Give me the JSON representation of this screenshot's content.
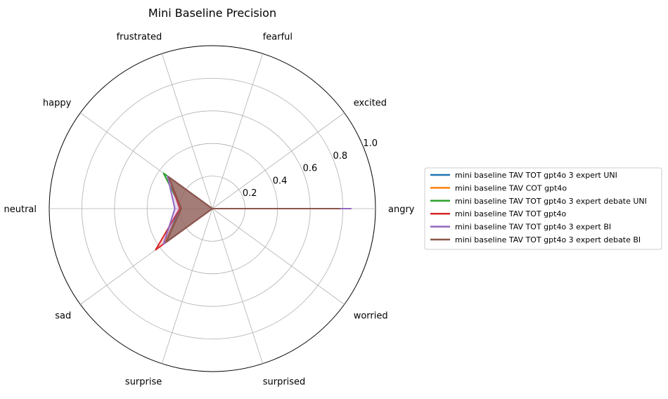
{
  "chart_data": {
    "type": "radar",
    "title": "Mini Baseline Precision",
    "categories": [
      "angry",
      "excited",
      "fearful",
      "frustrated",
      "happy",
      "neutral",
      "sad",
      "surprise",
      "surprised",
      "worried"
    ],
    "rlim": [
      0,
      1.0
    ],
    "r_ticks": [
      0.2,
      0.4,
      0.6,
      0.8,
      1.0
    ],
    "r_tick_labels": [
      "0.2",
      "0.4",
      "0.6",
      "0.8",
      "1.0"
    ],
    "grid": true,
    "legend_position": "right",
    "series": [
      {
        "name": "mini baseline TAV TOT gpt4o 3 expert UNI",
        "color": "#1f77b4",
        "values": [
          0.78,
          0.0,
          0.0,
          0.0,
          0.33,
          0.2,
          0.36,
          0.0,
          0.0,
          0.0
        ]
      },
      {
        "name": "mini baseline TAV COT gpt4o",
        "color": "#ff7f0e",
        "values": [
          0.78,
          0.0,
          0.0,
          0.0,
          0.33,
          0.19,
          0.36,
          0.0,
          0.0,
          0.0
        ]
      },
      {
        "name": "mini baseline TAV TOT gpt4o 3 expert debate UNI",
        "color": "#2ca02c",
        "values": [
          0.78,
          0.0,
          0.0,
          0.0,
          0.37,
          0.19,
          0.35,
          0.0,
          0.0,
          0.0
        ]
      },
      {
        "name": "mini baseline TAV TOT gpt4o",
        "color": "#d62728",
        "values": [
          0.78,
          0.0,
          0.0,
          0.0,
          0.33,
          0.2,
          0.43,
          0.0,
          0.0,
          0.0
        ]
      },
      {
        "name": "mini baseline TAV TOT gpt4o 3 expert BI",
        "color": "#9467bd",
        "values": [
          0.85,
          0.0,
          0.0,
          0.0,
          0.34,
          0.23,
          0.37,
          0.0,
          0.0,
          0.0
        ]
      },
      {
        "name": "mini baseline TAV TOT gpt4o 3 expert debate BI",
        "color": "#8c564b",
        "values": [
          0.78,
          0.0,
          0.0,
          0.0,
          0.33,
          0.19,
          0.35,
          0.0,
          0.0,
          0.0
        ]
      }
    ]
  }
}
